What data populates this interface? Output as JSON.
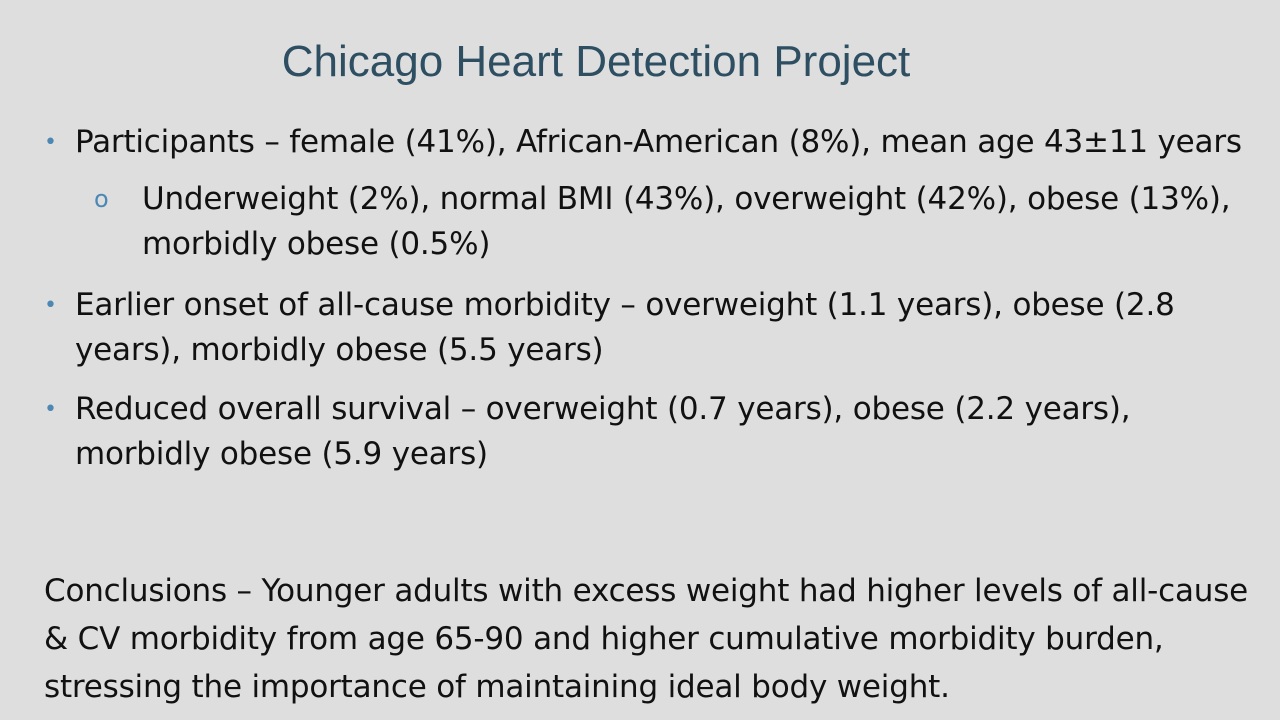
{
  "slide": {
    "title": "Chicago Heart Detection Project",
    "bullets": [
      {
        "level": 1,
        "marker": "•",
        "text": "Participants – female (41%), African-American (8%), mean age 43±11 years"
      },
      {
        "level": 2,
        "marker": "o",
        "text": "Underweight (2%), normal BMI (43%), overweight (42%), obese (13%), morbidly obese (0.5%)"
      },
      {
        "level": 1,
        "marker": "•",
        "text": "Earlier onset of all-cause morbidity – overweight (1.1 years), obese (2.8 years), morbidly obese (5.5 years)"
      },
      {
        "level": 1,
        "marker": "•",
        "text": "Reduced overall survival – overweight (0.7 years), obese (2.2 years), morbidly obese (5.9 years)"
      }
    ],
    "conclusion": "Conclusions – Younger adults with excess weight had higher levels of all-cause & CV morbidity from age 65-90 and higher cumulative morbidity burden, stressing the importance of maintaining ideal body weight."
  },
  "colors": {
    "background": "#dedede",
    "title": "#2e4e62",
    "bullet_marker": "#4d88b4",
    "text": "#111111"
  }
}
